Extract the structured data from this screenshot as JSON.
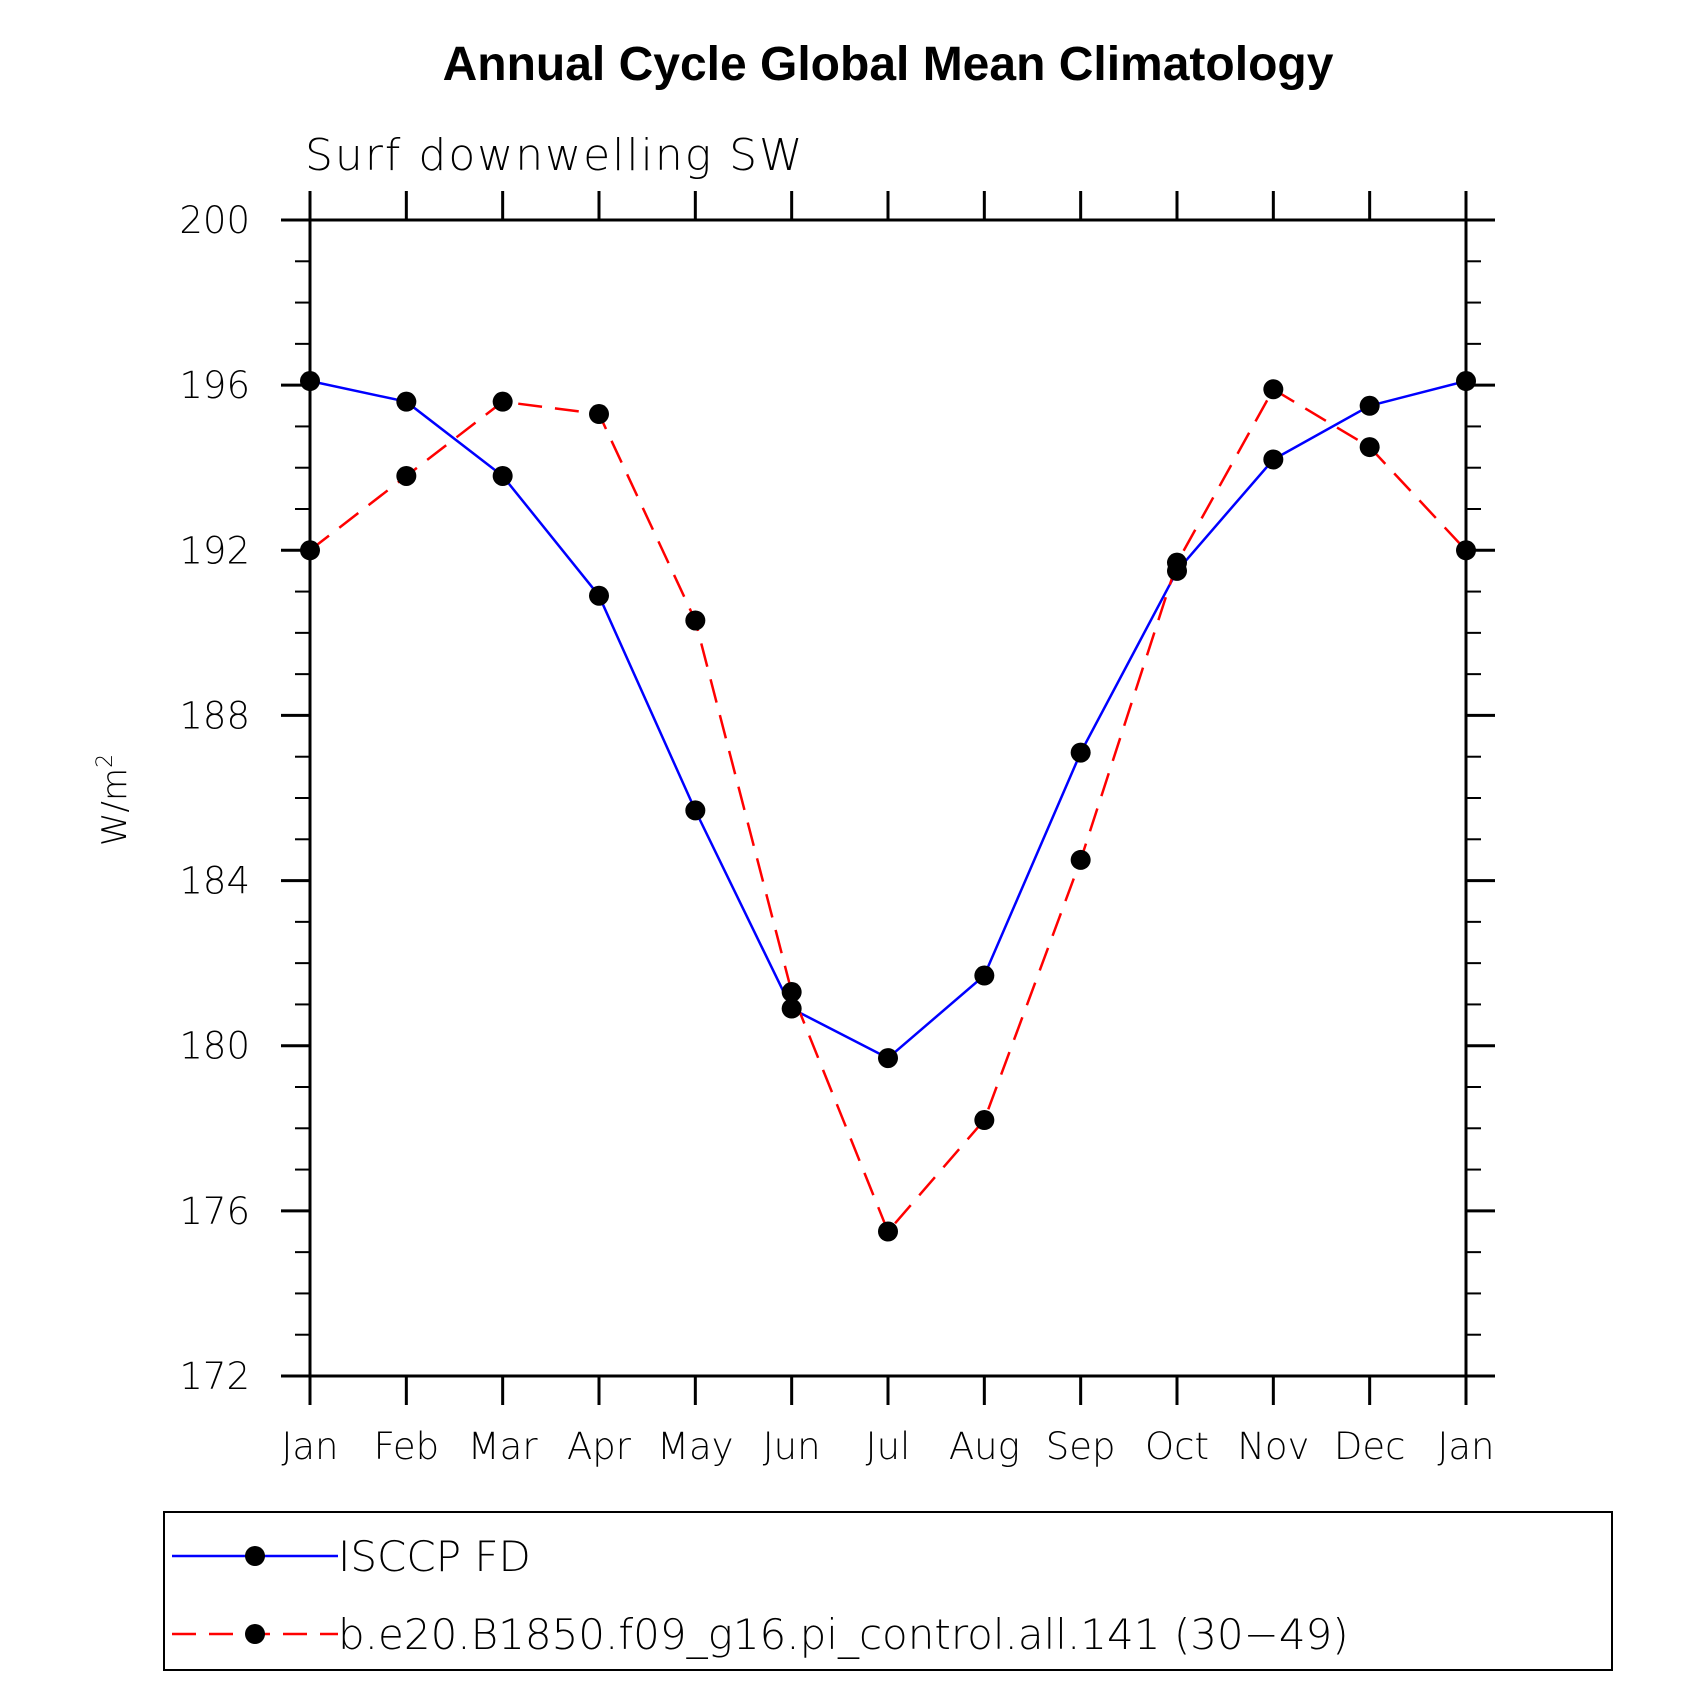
{
  "chart_data": {
    "type": "line",
    "title": "Annual Cycle Global Mean Climatology",
    "subtitle": "Surf downwelling SW",
    "ylabel_base": "W/m",
    "ylabel_sup": "2",
    "categories": [
      "Jan",
      "Feb",
      "Mar",
      "Apr",
      "May",
      "Jun",
      "Jul",
      "Aug",
      "Sep",
      "Oct",
      "Nov",
      "Dec",
      "Jan"
    ],
    "ylim": [
      172,
      200
    ],
    "yticks": [
      172,
      176,
      180,
      184,
      188,
      192,
      196,
      200
    ],
    "series": [
      {
        "name": "ISCCP FD",
        "color": "#0000ff",
        "style": "solid",
        "values": [
          196.1,
          195.6,
          193.8,
          190.9,
          185.7,
          180.9,
          179.7,
          181.7,
          187.1,
          191.5,
          194.2,
          195.5,
          196.1
        ]
      },
      {
        "name": "b.e20.B1850.f09_g16.pi_control.all.141 (30−49)",
        "color": "#ff0000",
        "style": "dashed",
        "values": [
          192.0,
          193.8,
          195.6,
          195.3,
          190.3,
          181.3,
          175.5,
          178.2,
          184.5,
          191.7,
          195.9,
          194.5,
          192.0
        ]
      }
    ],
    "legend_position": "bottom"
  }
}
